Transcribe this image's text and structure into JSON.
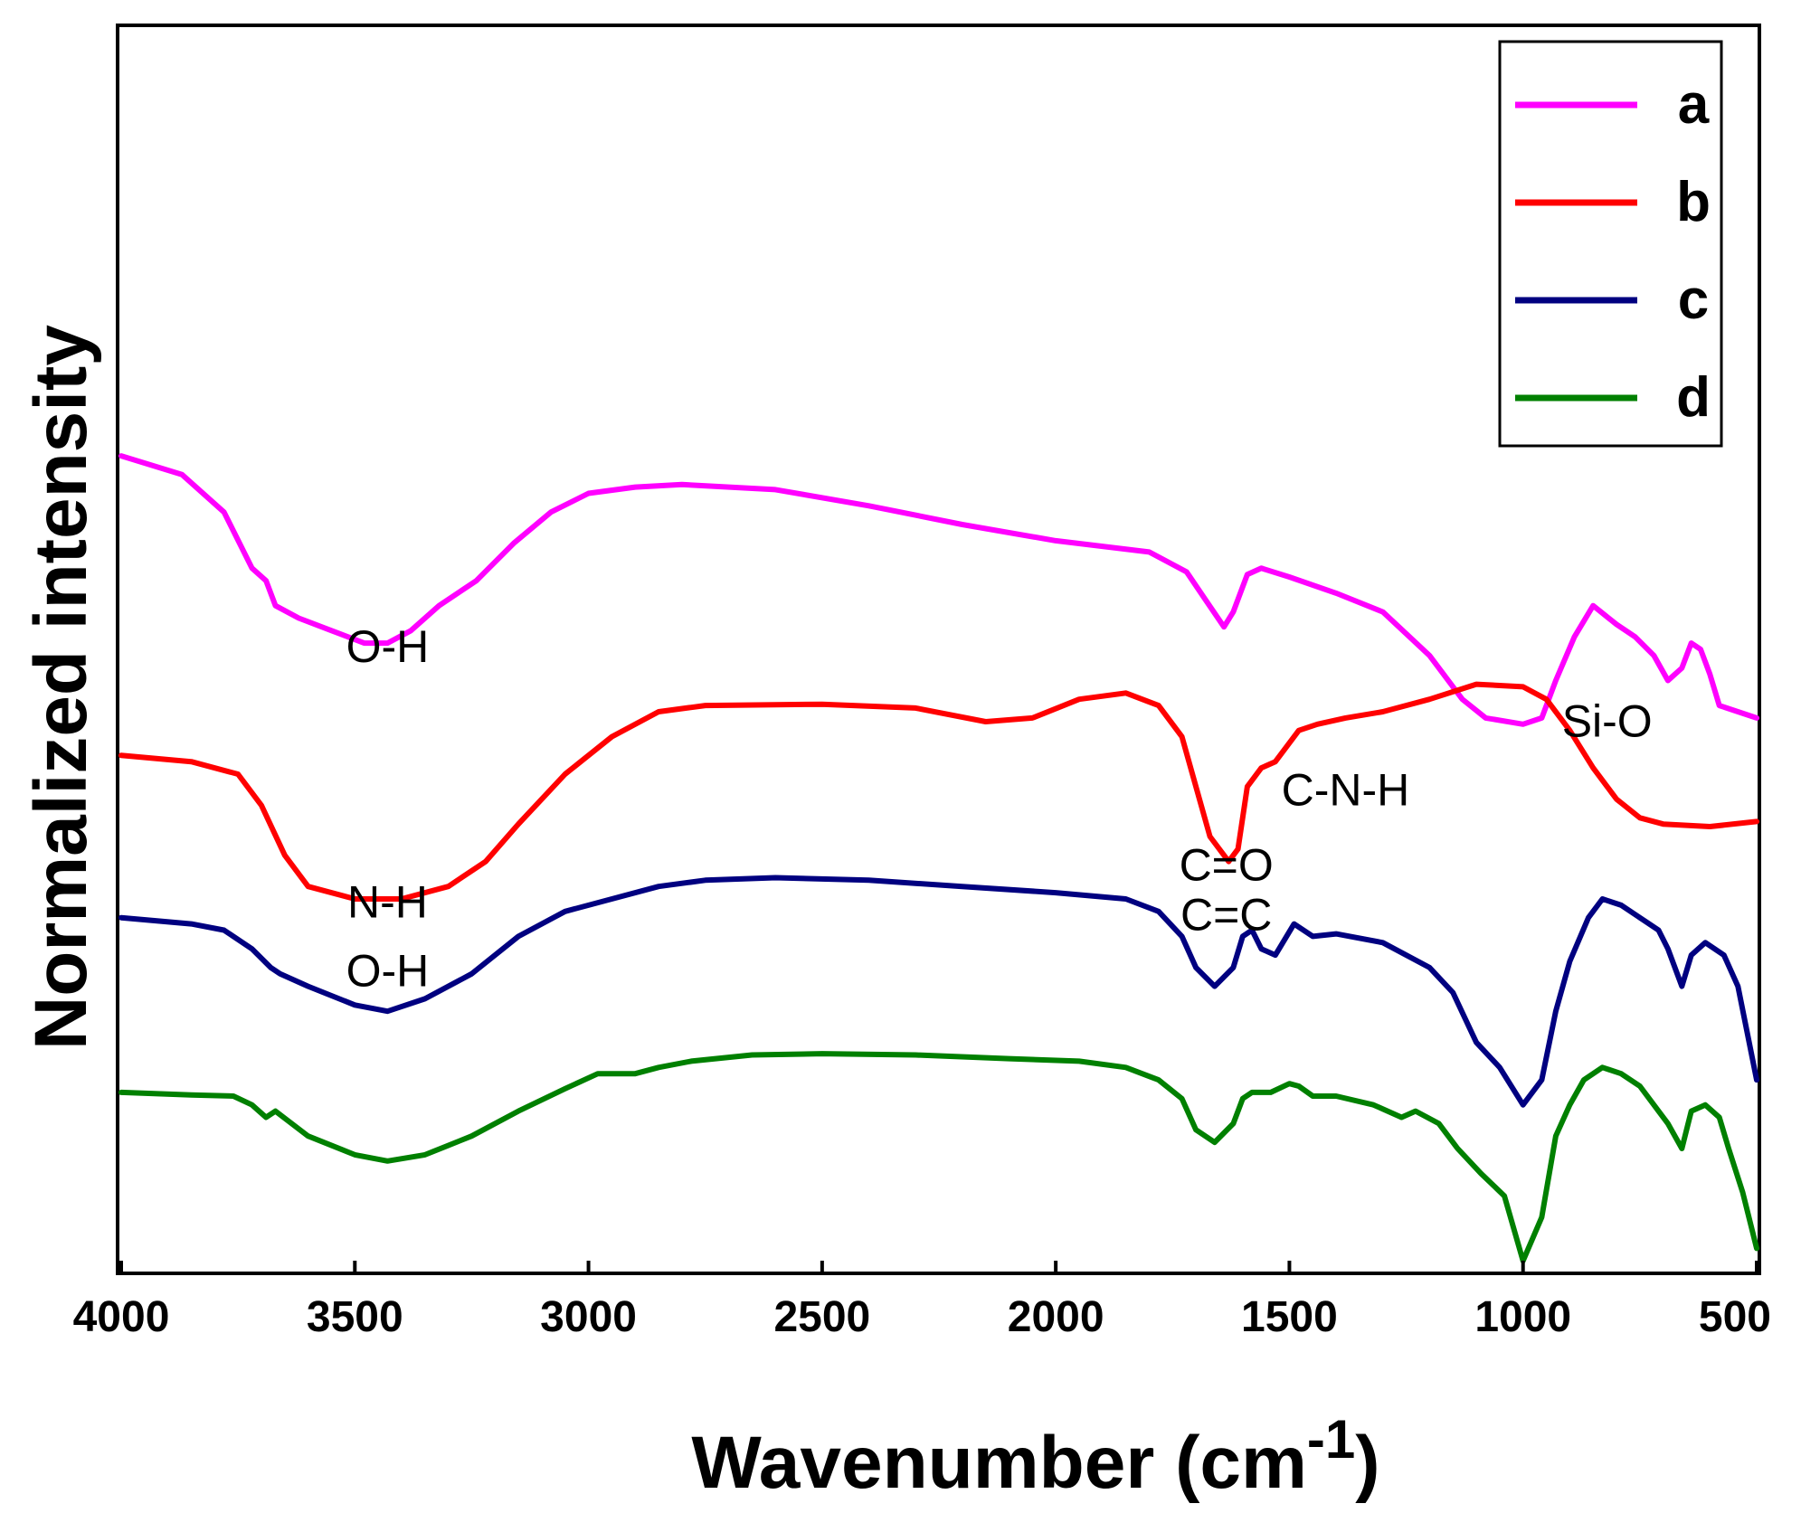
{
  "chart_data": {
    "type": "line",
    "title": "",
    "xlabel": "Wavenumber (cm",
    "xlabel_sup": "-1",
    "xlabel_close": ")",
    "ylabel": "Normalized intensity",
    "xlim": [
      4000,
      500
    ],
    "ylim": [
      0,
      10
    ],
    "x_ticks": [
      4000,
      3500,
      3000,
      2500,
      2000,
      1500,
      1000,
      500
    ],
    "x_tick_labels": [
      "4000",
      "3500",
      "3000",
      "2500",
      "2000",
      "1500",
      "1000",
      "500"
    ],
    "y_ticks_shown": false,
    "grid": false,
    "legend_position": "top-right",
    "series": [
      {
        "name": "a",
        "color": "#ff00ff",
        "points": [
          [
            4000,
            6.55
          ],
          [
            3870,
            6.4
          ],
          [
            3780,
            6.1
          ],
          [
            3720,
            5.65
          ],
          [
            3690,
            5.55
          ],
          [
            3670,
            5.35
          ],
          [
            3620,
            5.25
          ],
          [
            3550,
            5.15
          ],
          [
            3480,
            5.05
          ],
          [
            3430,
            5.05
          ],
          [
            3380,
            5.15
          ],
          [
            3320,
            5.35
          ],
          [
            3240,
            5.55
          ],
          [
            3160,
            5.85
          ],
          [
            3080,
            6.1
          ],
          [
            3000,
            6.25
          ],
          [
            2900,
            6.3
          ],
          [
            2800,
            6.32
          ],
          [
            2600,
            6.28
          ],
          [
            2400,
            6.15
          ],
          [
            2200,
            6.0
          ],
          [
            2000,
            5.87
          ],
          [
            1800,
            5.78
          ],
          [
            1720,
            5.62
          ],
          [
            1680,
            5.4
          ],
          [
            1640,
            5.18
          ],
          [
            1620,
            5.3
          ],
          [
            1590,
            5.6
          ],
          [
            1560,
            5.65
          ],
          [
            1500,
            5.58
          ],
          [
            1400,
            5.45
          ],
          [
            1300,
            5.3
          ],
          [
            1200,
            4.95
          ],
          [
            1130,
            4.6
          ],
          [
            1080,
            4.45
          ],
          [
            1000,
            4.4
          ],
          [
            960,
            4.45
          ],
          [
            930,
            4.75
          ],
          [
            890,
            5.1
          ],
          [
            850,
            5.35
          ],
          [
            800,
            5.2
          ],
          [
            760,
            5.1
          ],
          [
            720,
            4.95
          ],
          [
            690,
            4.75
          ],
          [
            660,
            4.85
          ],
          [
            640,
            5.05
          ],
          [
            620,
            5.0
          ],
          [
            600,
            4.8
          ],
          [
            580,
            4.55
          ],
          [
            540,
            4.5
          ],
          [
            500,
            4.45
          ]
        ]
      },
      {
        "name": "b",
        "color": "#ff0000",
        "points": [
          [
            4000,
            4.15
          ],
          [
            3850,
            4.1
          ],
          [
            3750,
            4.0
          ],
          [
            3700,
            3.75
          ],
          [
            3650,
            3.35
          ],
          [
            3600,
            3.1
          ],
          [
            3500,
            3.0
          ],
          [
            3400,
            3.0
          ],
          [
            3300,
            3.1
          ],
          [
            3220,
            3.3
          ],
          [
            3150,
            3.6
          ],
          [
            3050,
            4.0
          ],
          [
            2950,
            4.3
          ],
          [
            2850,
            4.5
          ],
          [
            2750,
            4.55
          ],
          [
            2500,
            4.56
          ],
          [
            2300,
            4.53
          ],
          [
            2150,
            4.42
          ],
          [
            2050,
            4.45
          ],
          [
            1950,
            4.6
          ],
          [
            1850,
            4.65
          ],
          [
            1780,
            4.55
          ],
          [
            1730,
            4.3
          ],
          [
            1700,
            3.9
          ],
          [
            1670,
            3.5
          ],
          [
            1630,
            3.3
          ],
          [
            1610,
            3.4
          ],
          [
            1590,
            3.9
          ],
          [
            1560,
            4.05
          ],
          [
            1530,
            4.1
          ],
          [
            1480,
            4.35
          ],
          [
            1440,
            4.4
          ],
          [
            1380,
            4.45
          ],
          [
            1300,
            4.5
          ],
          [
            1200,
            4.6
          ],
          [
            1100,
            4.72
          ],
          [
            1000,
            4.7
          ],
          [
            950,
            4.6
          ],
          [
            900,
            4.35
          ],
          [
            850,
            4.05
          ],
          [
            800,
            3.8
          ],
          [
            750,
            3.65
          ],
          [
            700,
            3.6
          ],
          [
            600,
            3.58
          ],
          [
            500,
            3.62
          ]
        ]
      },
      {
        "name": "c",
        "color": "#000080",
        "points": [
          [
            4000,
            2.85
          ],
          [
            3850,
            2.8
          ],
          [
            3780,
            2.75
          ],
          [
            3720,
            2.6
          ],
          [
            3680,
            2.45
          ],
          [
            3660,
            2.4
          ],
          [
            3600,
            2.3
          ],
          [
            3500,
            2.15
          ],
          [
            3430,
            2.1
          ],
          [
            3350,
            2.2
          ],
          [
            3250,
            2.4
          ],
          [
            3150,
            2.7
          ],
          [
            3050,
            2.9
          ],
          [
            2950,
            3.0
          ],
          [
            2850,
            3.1
          ],
          [
            2750,
            3.15
          ],
          [
            2600,
            3.17
          ],
          [
            2400,
            3.15
          ],
          [
            2200,
            3.1
          ],
          [
            2000,
            3.05
          ],
          [
            1850,
            3.0
          ],
          [
            1780,
            2.9
          ],
          [
            1730,
            2.7
          ],
          [
            1700,
            2.45
          ],
          [
            1660,
            2.3
          ],
          [
            1620,
            2.45
          ],
          [
            1600,
            2.7
          ],
          [
            1580,
            2.75
          ],
          [
            1560,
            2.6
          ],
          [
            1530,
            2.55
          ],
          [
            1490,
            2.8
          ],
          [
            1450,
            2.7
          ],
          [
            1400,
            2.72
          ],
          [
            1300,
            2.65
          ],
          [
            1200,
            2.45
          ],
          [
            1150,
            2.25
          ],
          [
            1100,
            1.85
          ],
          [
            1050,
            1.65
          ],
          [
            1000,
            1.35
          ],
          [
            960,
            1.55
          ],
          [
            930,
            2.1
          ],
          [
            900,
            2.5
          ],
          [
            860,
            2.85
          ],
          [
            830,
            3.0
          ],
          [
            790,
            2.95
          ],
          [
            750,
            2.85
          ],
          [
            710,
            2.75
          ],
          [
            690,
            2.6
          ],
          [
            660,
            2.3
          ],
          [
            640,
            2.55
          ],
          [
            610,
            2.65
          ],
          [
            570,
            2.55
          ],
          [
            540,
            2.3
          ],
          [
            500,
            1.55
          ]
        ]
      },
      {
        "name": "d",
        "color": "#008000",
        "points": [
          [
            4000,
            1.45
          ],
          [
            3850,
            1.43
          ],
          [
            3760,
            1.42
          ],
          [
            3720,
            1.35
          ],
          [
            3690,
            1.25
          ],
          [
            3670,
            1.3
          ],
          [
            3600,
            1.1
          ],
          [
            3500,
            0.95
          ],
          [
            3430,
            0.9
          ],
          [
            3350,
            0.95
          ],
          [
            3250,
            1.1
          ],
          [
            3150,
            1.3
          ],
          [
            3050,
            1.48
          ],
          [
            2980,
            1.6
          ],
          [
            2900,
            1.6
          ],
          [
            2850,
            1.65
          ],
          [
            2780,
            1.7
          ],
          [
            2650,
            1.75
          ],
          [
            2500,
            1.76
          ],
          [
            2300,
            1.75
          ],
          [
            2100,
            1.72
          ],
          [
            1950,
            1.7
          ],
          [
            1850,
            1.65
          ],
          [
            1780,
            1.55
          ],
          [
            1730,
            1.4
          ],
          [
            1700,
            1.15
          ],
          [
            1660,
            1.05
          ],
          [
            1620,
            1.2
          ],
          [
            1600,
            1.4
          ],
          [
            1580,
            1.45
          ],
          [
            1540,
            1.45
          ],
          [
            1500,
            1.52
          ],
          [
            1480,
            1.5
          ],
          [
            1450,
            1.42
          ],
          [
            1400,
            1.42
          ],
          [
            1320,
            1.35
          ],
          [
            1260,
            1.25
          ],
          [
            1230,
            1.3
          ],
          [
            1180,
            1.2
          ],
          [
            1140,
            1.0
          ],
          [
            1090,
            0.8
          ],
          [
            1040,
            0.62
          ],
          [
            1000,
            0.1
          ],
          [
            960,
            0.45
          ],
          [
            930,
            1.1
          ],
          [
            900,
            1.35
          ],
          [
            870,
            1.55
          ],
          [
            830,
            1.65
          ],
          [
            790,
            1.6
          ],
          [
            750,
            1.5
          ],
          [
            710,
            1.3
          ],
          [
            690,
            1.2
          ],
          [
            660,
            1.0
          ],
          [
            640,
            1.3
          ],
          [
            610,
            1.35
          ],
          [
            580,
            1.25
          ],
          [
            560,
            1.0
          ],
          [
            530,
            0.65
          ],
          [
            500,
            0.2
          ]
        ]
      }
    ],
    "annotations": [
      {
        "text": "O-H",
        "x": 3430,
        "y": 4.9
      },
      {
        "text": "Si-O",
        "x": 820,
        "y": 4.3
      },
      {
        "text": "C-N-H",
        "x": 1380,
        "y": 3.75
      },
      {
        "text": "C=O",
        "x": 1635,
        "y": 3.15
      },
      {
        "text": "C=C",
        "x": 1635,
        "y": 2.75
      },
      {
        "text": "N-H",
        "x": 3430,
        "y": 2.85
      },
      {
        "text": "O-H",
        "x": 3430,
        "y": 2.3
      }
    ]
  }
}
